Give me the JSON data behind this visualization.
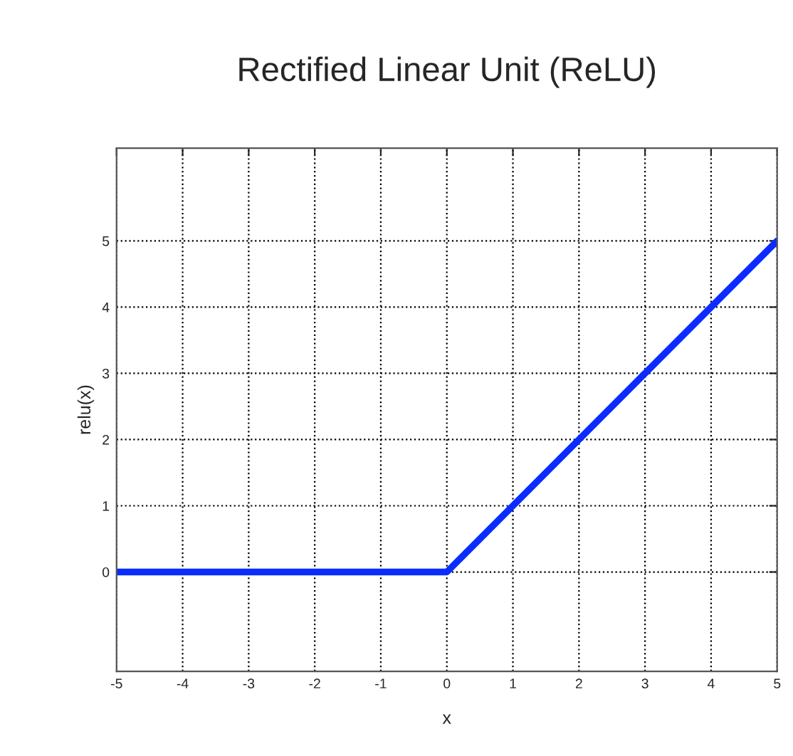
{
  "chart_data": {
    "type": "line",
    "title": "Rectified Linear Unit (ReLU)",
    "xlabel": "x",
    "ylabel": "relu(x)",
    "x": [
      -5,
      0,
      5
    ],
    "series": [
      {
        "color": "#0a2cff",
        "values": [
          0,
          0,
          5
        ]
      }
    ],
    "xlim": [
      -5,
      5
    ],
    "ylim": [
      -1.5,
      6.4
    ],
    "xticks": [
      -5,
      -4,
      -3,
      -2,
      -1,
      0,
      1,
      2,
      3,
      4,
      5
    ],
    "yticks": [
      0,
      1,
      2,
      3,
      4,
      5
    ],
    "grid": true,
    "line_style": "solid",
    "marker": "none"
  }
}
